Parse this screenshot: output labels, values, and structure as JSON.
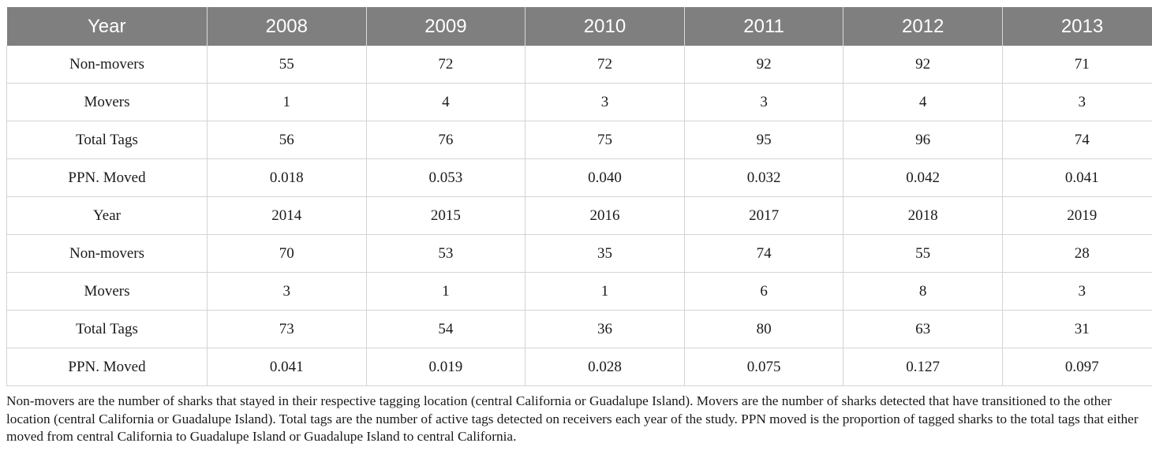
{
  "table": {
    "header": [
      "Year",
      "2008",
      "2009",
      "2010",
      "2011",
      "2012",
      "2013"
    ],
    "rows": [
      [
        "Non-movers",
        "55",
        "72",
        "72",
        "92",
        "92",
        "71"
      ],
      [
        "Movers",
        "1",
        "4",
        "3",
        "3",
        "4",
        "3"
      ],
      [
        "Total Tags",
        "56",
        "76",
        "75",
        "95",
        "96",
        "74"
      ],
      [
        "PPN. Moved",
        "0.018",
        "0.053",
        "0.040",
        "0.032",
        "0.042",
        "0.041"
      ],
      [
        "Year",
        "2014",
        "2015",
        "2016",
        "2017",
        "2018",
        "2019"
      ],
      [
        "Non-movers",
        "70",
        "53",
        "35",
        "74",
        "55",
        "28"
      ],
      [
        "Movers",
        "3",
        "1",
        "1",
        "6",
        "8",
        "3"
      ],
      [
        "Total Tags",
        "73",
        "54",
        "36",
        "80",
        "63",
        "31"
      ],
      [
        "PPN. Moved",
        "0.041",
        "0.019",
        "0.028",
        "0.075",
        "0.127",
        "0.097"
      ]
    ]
  },
  "footnote": "Non-movers are the number of sharks that stayed in their respective tagging location (central California or Guadalupe Island). Movers are the number of sharks detected that have transitioned to the other location (central California or Guadalupe Island). Total tags are the number of active tags detected on receivers each year of the study. PPN moved is the proportion of tagged sharks to the total tags that either moved from central California to Guadalupe Island or Guadalupe Island to central California.",
  "colors": {
    "header_bg": "#7f7f7f",
    "header_text": "#ffffff",
    "grid": "#d4d4d4"
  }
}
